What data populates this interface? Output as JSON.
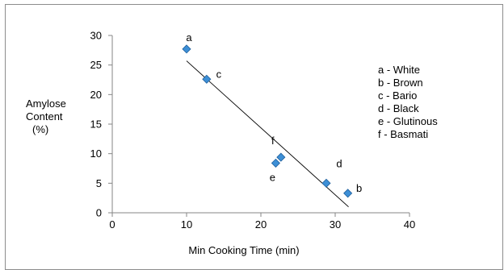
{
  "chart_data": {
    "type": "scatter",
    "title": "",
    "xlabel": "Min Cooking Time (min)",
    "ylabel_lines": [
      "Amylose",
      "Content",
      "(%)"
    ],
    "xlim": [
      0,
      40
    ],
    "ylim": [
      0,
      30
    ],
    "xticks": [
      0,
      10,
      20,
      30,
      40
    ],
    "yticks": [
      0,
      5,
      10,
      15,
      20,
      25,
      30
    ],
    "grid": false,
    "marker_color": "#3d8fd6",
    "points": [
      {
        "label": "a",
        "x": 10.0,
        "y": 27.7
      },
      {
        "label": "b",
        "x": 31.7,
        "y": 3.3
      },
      {
        "label": "c",
        "x": 12.7,
        "y": 22.6
      },
      {
        "label": "d",
        "x": 28.8,
        "y": 5.0
      },
      {
        "label": "e",
        "x": 22.0,
        "y": 8.4
      },
      {
        "label": "f",
        "x": 22.7,
        "y": 9.4
      }
    ],
    "trendline": {
      "x": [
        10.0,
        31.8
      ],
      "y": [
        25.7,
        1.0
      ]
    },
    "legend_entries": [
      "a - White",
      "b - Brown",
      "c - Bario",
      "d - Black",
      "e - Glutinous",
      "f -  Basmati"
    ],
    "legend_position": "right"
  }
}
